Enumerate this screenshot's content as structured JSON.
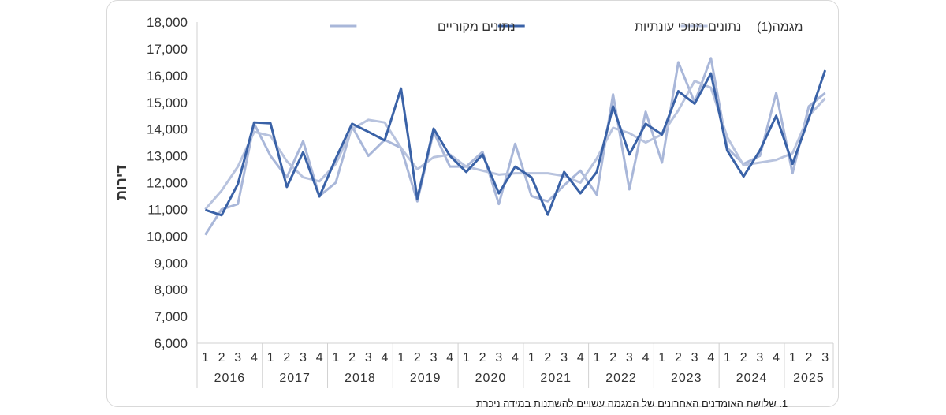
{
  "chart_data": {
    "type": "line",
    "ylabel": "דירות",
    "ylim": [
      6000,
      18000
    ],
    "yticks": [
      "6,000",
      "7,000",
      "8,000",
      "9,000",
      "10,000",
      "11,000",
      "12,000",
      "13,000",
      "14,000",
      "15,000",
      "16,000",
      "17,000",
      "18,000"
    ],
    "ytick_values": [
      6000,
      7000,
      8000,
      9000,
      10000,
      11000,
      12000,
      13000,
      14000,
      15000,
      16000,
      17000,
      18000
    ],
    "years": [
      "2016",
      "2017",
      "2018",
      "2019",
      "2020",
      "2021",
      "2022",
      "2023",
      "2024",
      "2025"
    ],
    "quarters_per_year": [
      [
        "1",
        "2",
        "3",
        "4"
      ],
      [
        "1",
        "2",
        "3",
        "4"
      ],
      [
        "1",
        "2",
        "3",
        "4"
      ],
      [
        "1",
        "2",
        "3",
        "4"
      ],
      [
        "1",
        "2",
        "3",
        "4"
      ],
      [
        "1",
        "2",
        "3",
        "4"
      ],
      [
        "1",
        "2",
        "3",
        "4"
      ],
      [
        "1",
        "2",
        "3",
        "4"
      ],
      [
        "1",
        "2",
        "3",
        "4"
      ],
      [
        "1",
        "2",
        "3"
      ]
    ],
    "grid": false,
    "legend_position": "top",
    "series": [
      {
        "name": "מגמה(1)",
        "color": "#b8c3de",
        "values": [
          11000,
          11700,
          12600,
          13900,
          13750,
          12800,
          12200,
          12050,
          12700,
          14000,
          14350,
          14250,
          13300,
          12500,
          12950,
          13050,
          12600,
          12450,
          12300,
          12350,
          12350,
          12350,
          12250,
          12000,
          12900,
          14050,
          13850,
          13500,
          13800,
          14700,
          15800,
          15550,
          13700,
          12650,
          12750,
          12850,
          13100,
          14500,
          15150
        ]
      },
      {
        "name": "נתונים מנוכי עונתיות",
        "color": "#3a62a7",
        "values": [
          10980,
          10780,
          11950,
          14250,
          14220,
          11840,
          13140,
          11480,
          12900,
          14200,
          13900,
          13580,
          15520,
          11400,
          14020,
          13000,
          12400,
          13050,
          11600,
          12600,
          12200,
          10800,
          12400,
          11600,
          12400,
          14850,
          13050,
          14200,
          13800,
          15420,
          14950,
          16080,
          13200,
          12230,
          13200,
          14500,
          12700,
          14400,
          16200
        ]
      },
      {
        "name": "נתונים מקוריים",
        "color": "#a9b7d9",
        "values": [
          10050,
          11000,
          11200,
          14200,
          13000,
          12200,
          13550,
          11500,
          12000,
          14100,
          13000,
          13600,
          13300,
          11300,
          13900,
          12600,
          12600,
          13150,
          11200,
          13450,
          11500,
          11300,
          11900,
          12450,
          11550,
          15300,
          11750,
          14650,
          12750,
          16500,
          15000,
          16650,
          13300,
          12700,
          13000,
          15350,
          12350,
          14850,
          15350
        ]
      }
    ]
  },
  "footnote": "1. שלושת האומדנים האחרונים של המגמה עשויים להשתנות במידה ניכרת"
}
